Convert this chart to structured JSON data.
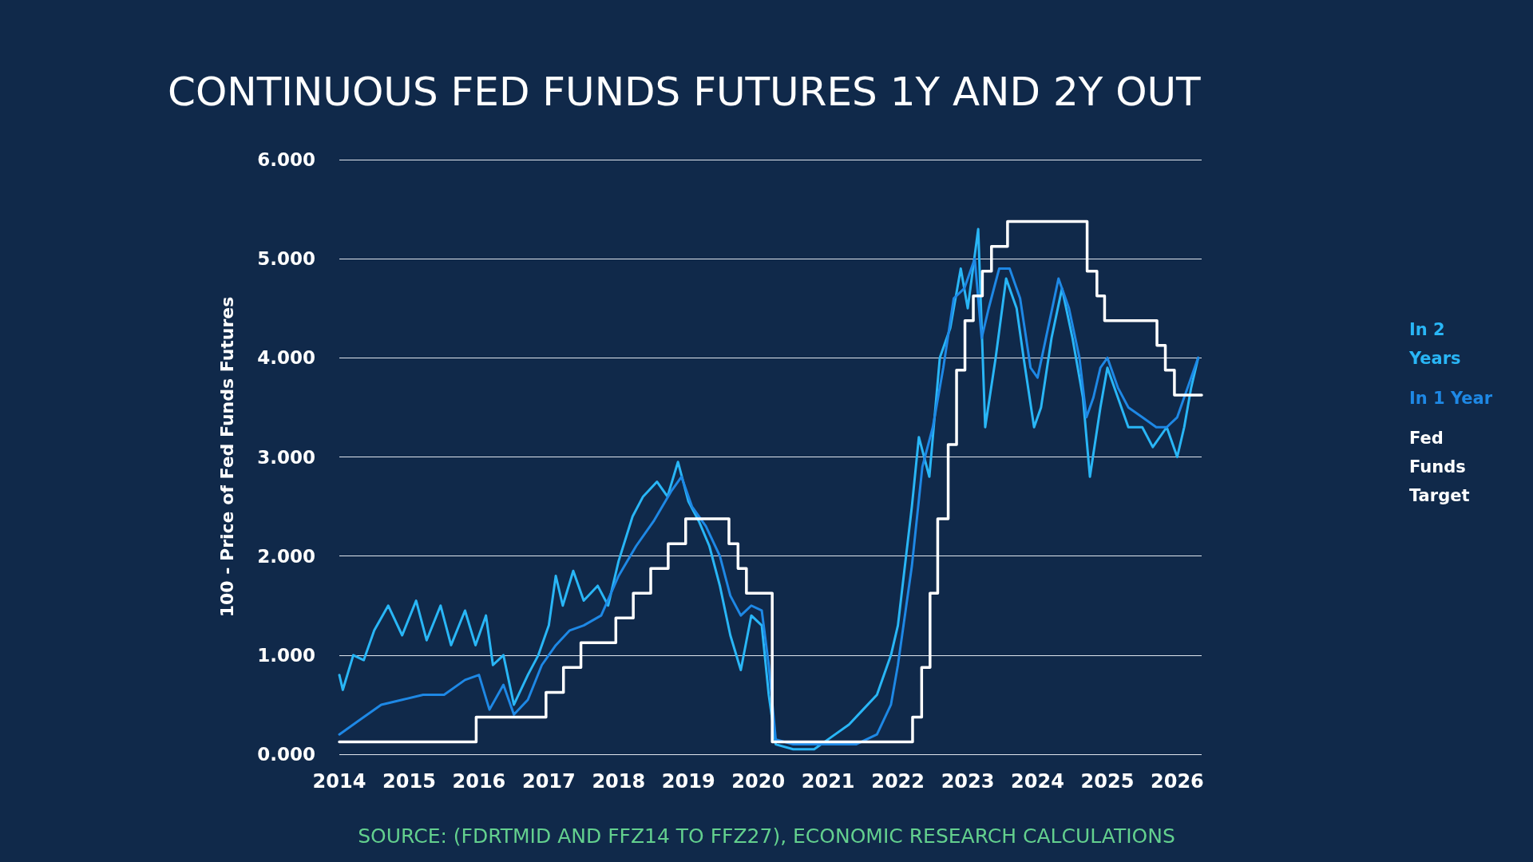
{
  "chart_data": {
    "type": "line",
    "title": "CONTINUOUS FED FUNDS FUTURES 1Y AND 2Y OUT",
    "ylabel": "100 - Price of Fed Funds Futures",
    "annotations": [
      "SOURCE: (FDRTMID AND FFZ14 TO FFZ27), ECONOMIC RESEARCH CALCULATIONS"
    ],
    "xlim": [
      2014,
      2026.35
    ],
    "xticks": [
      2014,
      2015,
      2016,
      2017,
      2018,
      2019,
      2020,
      2021,
      2022,
      2023,
      2024,
      2025,
      2026
    ],
    "ylim": [
      0,
      6
    ],
    "yticks": [
      {
        "value": 0,
        "label": "0.000"
      },
      {
        "value": 1,
        "label": "1.000"
      },
      {
        "value": 2,
        "label": "2.000"
      },
      {
        "value": 3,
        "label": "3.000"
      },
      {
        "value": 4,
        "label": "4.000"
      },
      {
        "value": 5,
        "label": "5.000"
      },
      {
        "value": 6,
        "label": "6.000"
      }
    ],
    "grid": "y",
    "legend": "right",
    "marker": "none",
    "line_style": "solid",
    "series": [
      {
        "name": "In 2 Years",
        "color": "#29b6f6",
        "x": [
          2014.0,
          2014.05,
          2014.2,
          2014.35,
          2014.5,
          2014.7,
          2014.9,
          2015.1,
          2015.25,
          2015.45,
          2015.6,
          2015.8,
          2015.95,
          2016.1,
          2016.2,
          2016.35,
          2016.5,
          2016.7,
          2016.85,
          2017.0,
          2017.1,
          2017.2,
          2017.35,
          2017.5,
          2017.7,
          2017.85,
          2018.0,
          2018.2,
          2018.35,
          2018.55,
          2018.7,
          2018.85,
          2019.0,
          2019.15,
          2019.3,
          2019.45,
          2019.6,
          2019.75,
          2019.9,
          2020.05,
          2020.15,
          2020.25,
          2020.5,
          2020.8,
          2021.0,
          2021.3,
          2021.5,
          2021.7,
          2021.9,
          2022.0,
          2022.2,
          2022.3,
          2022.45,
          2022.6,
          2022.75,
          2022.9,
          2023.0,
          2023.15,
          2023.25,
          2023.4,
          2023.55,
          2023.7,
          2023.8,
          2023.95,
          2024.05,
          2024.2,
          2024.35,
          2024.5,
          2024.65,
          2024.75,
          2024.9,
          2025.0,
          2025.15,
          2025.3,
          2025.5,
          2025.65,
          2025.85,
          2026.0,
          2026.1,
          2026.2,
          2026.3
        ],
        "values": [
          0.8,
          0.65,
          1.0,
          0.95,
          1.25,
          1.5,
          1.2,
          1.55,
          1.15,
          1.5,
          1.1,
          1.45,
          1.1,
          1.4,
          0.9,
          1.0,
          0.5,
          0.8,
          1.0,
          1.3,
          1.8,
          1.5,
          1.85,
          1.55,
          1.7,
          1.5,
          1.95,
          2.4,
          2.6,
          2.75,
          2.6,
          2.95,
          2.55,
          2.35,
          2.1,
          1.7,
          1.2,
          0.85,
          1.4,
          1.3,
          0.6,
          0.1,
          0.05,
          0.05,
          0.15,
          0.3,
          0.45,
          0.6,
          1.0,
          1.3,
          2.5,
          3.2,
          2.8,
          4.0,
          4.3,
          4.9,
          4.5,
          5.3,
          3.3,
          4.0,
          4.8,
          4.5,
          4.0,
          3.3,
          3.5,
          4.2,
          4.7,
          4.2,
          3.6,
          2.8,
          3.5,
          3.9,
          3.6,
          3.3,
          3.3,
          3.1,
          3.3,
          3.0,
          3.3,
          3.7,
          4.0
        ]
      },
      {
        "name": "In 1 Year",
        "color": "#1e88e5",
        "x": [
          2014.0,
          2014.3,
          2014.6,
          2014.9,
          2015.2,
          2015.5,
          2015.8,
          2016.0,
          2016.15,
          2016.35,
          2016.5,
          2016.7,
          2016.9,
          2017.1,
          2017.3,
          2017.5,
          2017.75,
          2018.0,
          2018.25,
          2018.5,
          2018.75,
          2018.9,
          2019.05,
          2019.25,
          2019.45,
          2019.6,
          2019.75,
          2019.9,
          2020.05,
          2020.15,
          2020.25,
          2020.5,
          2020.8,
          2021.0,
          2021.4,
          2021.7,
          2021.9,
          2022.0,
          2022.2,
          2022.35,
          2022.5,
          2022.65,
          2022.8,
          2022.95,
          2023.1,
          2023.2,
          2023.3,
          2023.45,
          2023.6,
          2023.75,
          2023.9,
          2024.0,
          2024.15,
          2024.3,
          2024.45,
          2024.6,
          2024.7,
          2024.8,
          2024.9,
          2025.0,
          2025.15,
          2025.3,
          2025.5,
          2025.7,
          2025.85,
          2026.0,
          2026.15,
          2026.3
        ],
        "values": [
          0.2,
          0.35,
          0.5,
          0.55,
          0.6,
          0.6,
          0.75,
          0.8,
          0.45,
          0.7,
          0.4,
          0.55,
          0.9,
          1.1,
          1.25,
          1.3,
          1.4,
          1.8,
          2.1,
          2.35,
          2.65,
          2.8,
          2.5,
          2.3,
          2.0,
          1.6,
          1.4,
          1.5,
          1.45,
          0.9,
          0.15,
          0.1,
          0.1,
          0.1,
          0.1,
          0.2,
          0.5,
          0.9,
          1.9,
          2.9,
          3.3,
          3.9,
          4.6,
          4.7,
          5.0,
          4.2,
          4.5,
          4.9,
          4.9,
          4.6,
          3.9,
          3.8,
          4.3,
          4.8,
          4.5,
          4.0,
          3.4,
          3.6,
          3.9,
          4.0,
          3.7,
          3.5,
          3.4,
          3.3,
          3.3,
          3.4,
          3.7,
          4.0
        ]
      },
      {
        "name": "Fed Funds Target",
        "type": "step",
        "color": "#ffffff",
        "x": [
          2014.0,
          2015.96,
          2016.96,
          2017.21,
          2017.46,
          2017.96,
          2018.21,
          2018.46,
          2018.71,
          2018.96,
          2019.58,
          2019.71,
          2019.83,
          2020.2,
          2022.21,
          2022.34,
          2022.46,
          2022.57,
          2022.72,
          2022.84,
          2022.96,
          2023.08,
          2023.21,
          2023.34,
          2023.57,
          2024.71,
          2024.85,
          2024.96,
          2025.71,
          2025.83,
          2025.96,
          2026.35
        ],
        "values": [
          0.125,
          0.375,
          0.625,
          0.875,
          1.125,
          1.375,
          1.625,
          1.875,
          2.125,
          2.375,
          2.125,
          1.875,
          1.625,
          0.125,
          0.375,
          0.875,
          1.625,
          2.375,
          3.125,
          3.875,
          4.375,
          4.625,
          4.875,
          5.125,
          5.375,
          4.875,
          4.625,
          4.375,
          4.125,
          3.875,
          3.625,
          3.625
        ]
      }
    ]
  }
}
